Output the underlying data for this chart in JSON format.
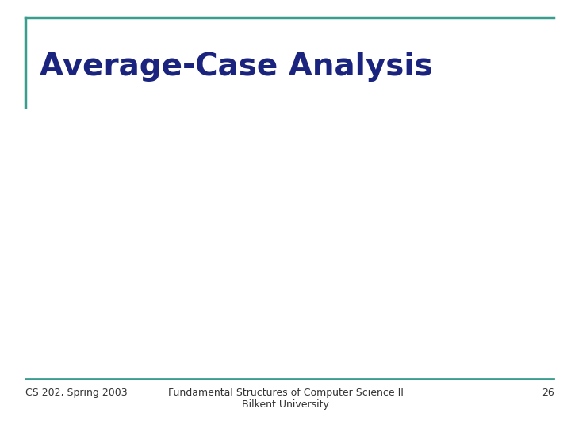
{
  "title": "Average-Case Analysis",
  "title_color": "#1a237e",
  "title_fontsize": 28,
  "accent_color": "#3a9e8e",
  "background_color": "#ffffff",
  "footer_left_text": "CS 202, Spring 2003",
  "footer_center_line1": "Fundamental Structures of Computer Science II",
  "footer_center_line2": "Bilkent University",
  "footer_right_text": "26",
  "footer_fontsize": 9,
  "footer_color": "#333333"
}
